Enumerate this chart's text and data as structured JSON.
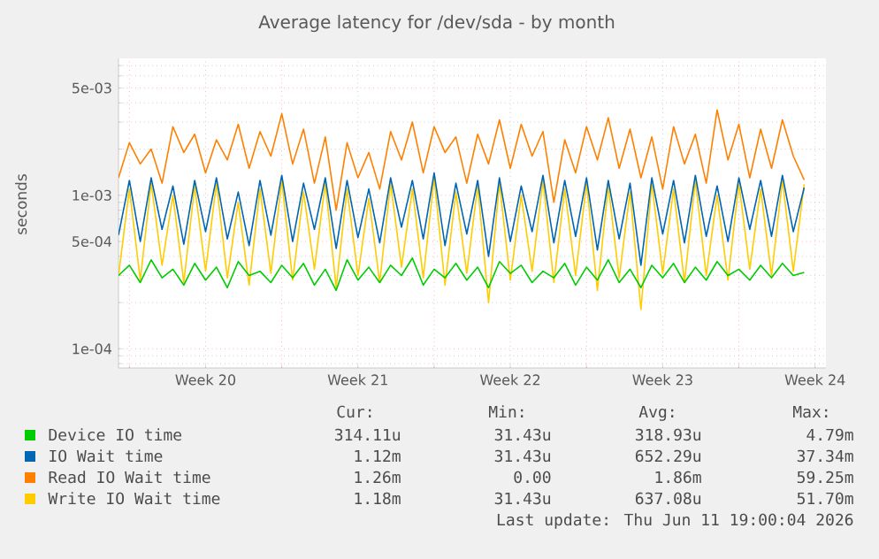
{
  "chart_data": {
    "type": "line",
    "title": "Average latency for /dev/sda - by month",
    "ylabel": "seconds",
    "log": true,
    "grid": true,
    "legend": "bottom",
    "line_style": "solid",
    "x": [
      "2026-05-10T12:00",
      "2026-05-11T00:00",
      "2026-05-11T12:00",
      "2026-05-12T00:00",
      "2026-05-12T12:00",
      "2026-05-13T00:00",
      "2026-05-13T12:00",
      "2026-05-14T00:00",
      "2026-05-14T12:00",
      "2026-05-15T00:00",
      "2026-05-15T12:00",
      "2026-05-16T00:00",
      "2026-05-16T12:00",
      "2026-05-17T00:00",
      "2026-05-17T12:00",
      "2026-05-18T00:00",
      "2026-05-18T12:00",
      "2026-05-19T00:00",
      "2026-05-19T12:00",
      "2026-05-20T00:00",
      "2026-05-20T12:00",
      "2026-05-21T00:00",
      "2026-05-21T12:00",
      "2026-05-22T00:00",
      "2026-05-22T12:00",
      "2026-05-23T00:00",
      "2026-05-23T12:00",
      "2026-05-24T00:00",
      "2026-05-24T12:00",
      "2026-05-25T00:00",
      "2026-05-25T12:00",
      "2026-05-26T00:00",
      "2026-05-26T12:00",
      "2026-05-27T00:00",
      "2026-05-27T12:00",
      "2026-05-28T00:00",
      "2026-05-28T12:00",
      "2026-05-29T00:00",
      "2026-05-29T12:00",
      "2026-05-30T00:00",
      "2026-05-30T12:00",
      "2026-05-31T00:00",
      "2026-05-31T12:00",
      "2026-06-01T00:00",
      "2026-06-01T12:00",
      "2026-06-02T00:00",
      "2026-06-02T12:00",
      "2026-06-03T00:00",
      "2026-06-03T12:00",
      "2026-06-04T00:00",
      "2026-06-04T12:00",
      "2026-06-05T00:00",
      "2026-06-05T12:00",
      "2026-06-06T00:00",
      "2026-06-06T12:00",
      "2026-06-07T00:00",
      "2026-06-07T12:00",
      "2026-06-08T00:00",
      "2026-06-08T12:00",
      "2026-06-09T00:00",
      "2026-06-09T12:00",
      "2026-06-10T00:00",
      "2026-06-10T12:00",
      "2026-06-11T00:00"
    ],
    "xlim": [
      "2026-05-10T12:00",
      "2026-06-12T00:00"
    ],
    "xticks": [
      {
        "value": "2026-05-11T00:00",
        "label": null
      },
      {
        "value": "2026-05-14T12:00",
        "label": "Week 20"
      },
      {
        "value": "2026-05-18T00:00",
        "label": null
      },
      {
        "value": "2026-05-21T12:00",
        "label": "Week 21"
      },
      {
        "value": "2026-05-25T00:00",
        "label": null
      },
      {
        "value": "2026-05-28T12:00",
        "label": "Week 22"
      },
      {
        "value": "2026-06-01T00:00",
        "label": null
      },
      {
        "value": "2026-06-04T12:00",
        "label": "Week 23"
      },
      {
        "value": "2026-06-08T00:00",
        "label": null
      },
      {
        "value": "2026-06-11T12:00",
        "label": "Week 24"
      }
    ],
    "ylim": [
      7.5e-05,
      0.0078
    ],
    "yticks": [
      {
        "value": 8e-05,
        "label": null
      },
      {
        "value": 9e-05,
        "label": null
      },
      {
        "value": 0.0001,
        "label": "1e-04"
      },
      {
        "value": 0.0002,
        "label": null
      },
      {
        "value": 0.0003,
        "label": null
      },
      {
        "value": 0.0004,
        "label": null
      },
      {
        "value": 0.0005,
        "label": "5e-04"
      },
      {
        "value": 0.0006,
        "label": null
      },
      {
        "value": 0.0007,
        "label": null
      },
      {
        "value": 0.0008,
        "label": null
      },
      {
        "value": 0.0009,
        "label": null
      },
      {
        "value": 0.001,
        "label": "1e-03"
      },
      {
        "value": 0.002,
        "label": null
      },
      {
        "value": 0.003,
        "label": null
      },
      {
        "value": 0.004,
        "label": null
      },
      {
        "value": 0.005,
        "label": "5e-03"
      },
      {
        "value": 0.006,
        "label": null
      },
      {
        "value": 0.007,
        "label": null
      }
    ],
    "series": [
      {
        "name": "Device IO time",
        "color": "#00cc00",
        "values": [
          0.0003,
          0.00035,
          0.00027,
          0.00038,
          0.00029,
          0.00033,
          0.00026,
          0.00036,
          0.00028,
          0.00034,
          0.00025,
          0.00037,
          0.0003,
          0.00032,
          0.00027,
          0.00035,
          0.00029,
          0.00036,
          0.00026,
          0.00033,
          0.00024,
          0.00038,
          0.00028,
          0.00034,
          0.00027,
          0.00035,
          0.0003,
          0.00039,
          0.00026,
          0.00033,
          0.00029,
          0.00036,
          0.00028,
          0.00034,
          0.00025,
          0.00037,
          0.00031,
          0.00035,
          0.00027,
          0.00032,
          0.00029,
          0.00036,
          0.00026,
          0.00034,
          0.00028,
          0.00038,
          0.00027,
          0.00033,
          0.00025,
          0.00035,
          0.00029,
          0.00036,
          0.00027,
          0.00034,
          0.00028,
          0.00037,
          0.0003,
          0.00033,
          0.00028,
          0.00035,
          0.00029,
          0.00036,
          0.0003,
          0.000314
        ]
      },
      {
        "name": "IO Wait time",
        "color": "#0066b3",
        "values": [
          0.00055,
          0.00125,
          0.0005,
          0.0013,
          0.0006,
          0.00115,
          0.00048,
          0.00125,
          0.00058,
          0.0013,
          0.00052,
          0.00105,
          0.00047,
          0.00125,
          0.00055,
          0.00135,
          0.0005,
          0.0012,
          0.0006,
          0.0013,
          0.00045,
          0.00125,
          0.00053,
          0.0011,
          0.00049,
          0.0013,
          0.00062,
          0.00125,
          0.00052,
          0.0014,
          0.00047,
          0.0012,
          0.00056,
          0.00125,
          0.0004,
          0.0013,
          0.0005,
          0.00115,
          0.00058,
          0.00135,
          0.00049,
          0.00125,
          0.00054,
          0.0013,
          0.00044,
          0.00125,
          0.00052,
          0.0012,
          0.00035,
          0.0013,
          0.00056,
          0.00125,
          0.00049,
          0.00135,
          0.00054,
          0.00115,
          0.0005,
          0.0013,
          0.0006,
          0.00125,
          0.00054,
          0.00135,
          0.00058,
          0.00112
        ]
      },
      {
        "name": "Read IO Wait time",
        "color": "#ff8000",
        "values": [
          0.0013,
          0.0022,
          0.0016,
          0.002,
          0.0012,
          0.0028,
          0.0019,
          0.0025,
          0.0014,
          0.0023,
          0.0017,
          0.0029,
          0.0015,
          0.0026,
          0.0018,
          0.0034,
          0.0016,
          0.0027,
          0.0012,
          0.0024,
          0.0008,
          0.0022,
          0.0013,
          0.0019,
          0.0011,
          0.0026,
          0.0017,
          0.003,
          0.0014,
          0.0028,
          0.0019,
          0.0024,
          0.0012,
          0.0025,
          0.0016,
          0.0031,
          0.0015,
          0.0029,
          0.0018,
          0.0026,
          0.0009,
          0.0023,
          0.0014,
          0.0028,
          0.0017,
          0.0032,
          0.0015,
          0.0027,
          0.0013,
          0.0024,
          0.0011,
          0.0028,
          0.0016,
          0.0025,
          0.0012,
          0.0036,
          0.0017,
          0.0029,
          0.0013,
          0.0027,
          0.0015,
          0.0031,
          0.0018,
          0.00126
        ]
      },
      {
        "name": "Write IO Wait time",
        "color": "#ffcc00",
        "values": [
          0.0003,
          0.0011,
          0.00028,
          0.0012,
          0.00035,
          0.001,
          0.00027,
          0.00115,
          0.00032,
          0.0012,
          0.00029,
          0.0009,
          0.00026,
          0.0011,
          0.00031,
          0.00125,
          0.00028,
          0.00105,
          0.00033,
          0.0012,
          0.00025,
          0.0011,
          0.0003,
          0.00095,
          0.00027,
          0.0012,
          0.00034,
          0.0011,
          0.00029,
          0.0013,
          0.00026,
          0.00105,
          0.00031,
          0.00115,
          0.0002,
          0.0012,
          0.00028,
          0.001,
          0.00032,
          0.00125,
          0.00027,
          0.0011,
          0.0003,
          0.0012,
          0.00024,
          0.00115,
          0.00029,
          0.00105,
          0.00018,
          0.0012,
          0.00031,
          0.0011,
          0.00027,
          0.00125,
          0.0003,
          0.001,
          0.00028,
          0.0012,
          0.00033,
          0.0011,
          0.0003,
          0.00125,
          0.00032,
          0.00118
        ]
      }
    ],
    "annotations": [
      "Cur:",
      "Min:",
      "Avg:",
      "Max:",
      "314.11u",
      "31.43u",
      "318.93u",
      "4.79m",
      "1.12m",
      "31.43u",
      "652.29u",
      "37.34m",
      "1.26m",
      "0.00",
      "1.86m",
      "59.25m",
      "1.18m",
      "31.43u",
      "637.08u",
      "51.70m",
      "Last update:  Thu Jun 11 19:00:04 2026"
    ]
  }
}
